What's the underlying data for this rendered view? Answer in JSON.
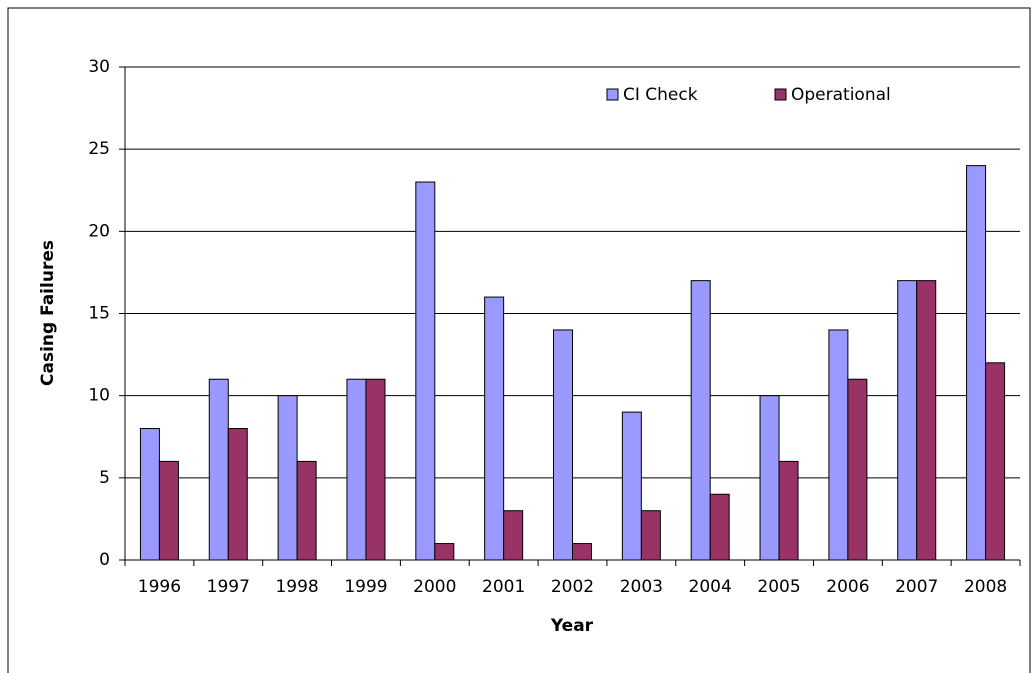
{
  "chart_data": {
    "type": "bar",
    "x_label": "Year",
    "y_label": "Casing Failures",
    "categories": [
      "1996",
      "1997",
      "1998",
      "1999",
      "2000",
      "2001",
      "2002",
      "2003",
      "2004",
      "2005",
      "2006",
      "2007",
      "2008"
    ],
    "series": [
      {
        "name": "CI Check",
        "color": "#9999ff",
        "values": [
          8,
          11,
          10,
          11,
          23,
          16,
          14,
          9,
          17,
          10,
          14,
          17,
          24
        ]
      },
      {
        "name": "Operational",
        "color": "#993366",
        "values": [
          6,
          8,
          6,
          11,
          1,
          3,
          1,
          3,
          4,
          6,
          11,
          17,
          12
        ]
      }
    ],
    "ylim": [
      0,
      30
    ],
    "yticks": [
      0,
      5,
      10,
      15,
      20,
      25,
      30
    ],
    "grid": true,
    "legend": "top-right"
  }
}
